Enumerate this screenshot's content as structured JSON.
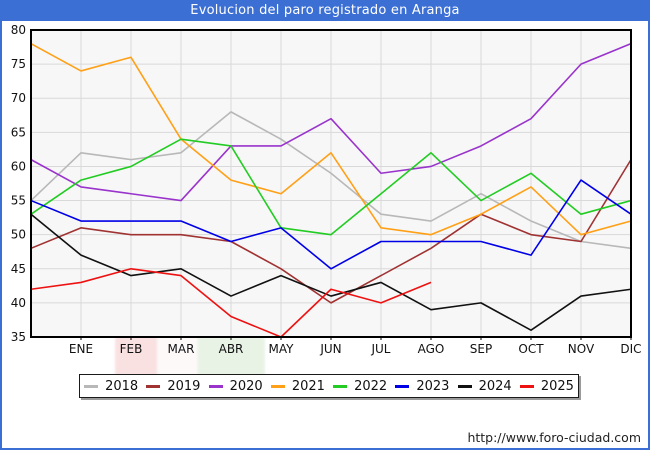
{
  "page": {
    "title": "Evolucion del paro registrado en Aranga",
    "footer_url": "http://www.foro-ciudad.com"
  },
  "colors": {
    "frame": "#3b6fd4",
    "title_bg": "#3b6fd4",
    "title_text": "#ffffff",
    "plot_bg": "#f7f7f7",
    "grid": "#d9d9d9",
    "axis": "#000000",
    "tick_text": "#111111"
  },
  "chart_data": {
    "type": "line",
    "title": "Evolucion del paro registrado en Aranga",
    "x_axis": {
      "months": [
        "ENE",
        "FEB",
        "MAR",
        "ABR",
        "MAY",
        "JUN",
        "JUL",
        "AGO",
        "SEP",
        "OCT",
        "NOV",
        "DIC"
      ],
      "note": "each series also has a starting point drawn on the y-axis (value before ENE)"
    },
    "y_axis": {
      "min": 35,
      "max": 80,
      "tick_step": 5,
      "ticks": [
        35,
        40,
        45,
        50,
        55,
        60,
        65,
        70,
        75,
        80
      ]
    },
    "grid": true,
    "legend_position": "bottom",
    "series": [
      {
        "name": "2018",
        "color": "#b8b8b8",
        "values": [
          55,
          62,
          61,
          62,
          68,
          64,
          59,
          53,
          52,
          56,
          52,
          49,
          48
        ]
      },
      {
        "name": "2019",
        "color": "#a03232",
        "values": [
          48,
          51,
          50,
          50,
          49,
          45,
          40,
          44,
          48,
          53,
          50,
          49,
          61
        ]
      },
      {
        "name": "2020",
        "color": "#9933cc",
        "values": [
          61,
          57,
          56,
          55,
          63,
          63,
          67,
          59,
          60,
          63,
          67,
          75,
          78
        ]
      },
      {
        "name": "2021",
        "color": "#ffa017",
        "values": [
          78,
          74,
          76,
          64,
          58,
          56,
          62,
          51,
          50,
          53,
          57,
          50,
          52
        ]
      },
      {
        "name": "2022",
        "color": "#22cc22",
        "values": [
          53,
          58,
          60,
          64,
          63,
          51,
          50,
          56,
          62,
          55,
          59,
          53,
          55
        ]
      },
      {
        "name": "2023",
        "color": "#0000e6",
        "values": [
          55,
          52,
          52,
          52,
          49,
          51,
          45,
          49,
          49,
          49,
          47,
          58,
          53
        ]
      },
      {
        "name": "2024",
        "color": "#111111",
        "values": [
          53,
          47,
          44,
          45,
          41,
          44,
          41,
          43,
          39,
          40,
          36,
          41,
          42
        ]
      },
      {
        "name": "2025",
        "color": "#ee1111",
        "values": [
          42,
          43,
          45,
          44,
          38,
          35,
          42,
          40,
          43
        ]
      }
    ]
  }
}
